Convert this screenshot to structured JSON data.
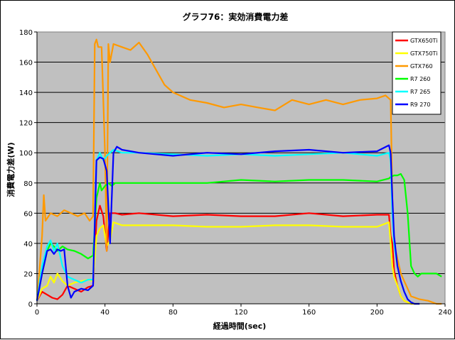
{
  "chart_data": {
    "type": "line",
    "title": "グラフ76：実効消費電力差",
    "xlabel": "経過時間(sec)",
    "ylabel": "消費電力差(W)",
    "xlim": [
      0,
      240
    ],
    "ylim": [
      0,
      180
    ],
    "x_ticks": [
      0,
      40,
      80,
      120,
      160,
      200,
      240
    ],
    "y_ticks": [
      0,
      20,
      40,
      60,
      80,
      100,
      120,
      140,
      160,
      180
    ],
    "grid": true,
    "plot_background": "#c0c0c0",
    "legend_position": "top-right",
    "series": [
      {
        "name": "GTX650Ti",
        "color": "#ff0000",
        "x": [
          0,
          3,
          6,
          9,
          12,
          15,
          18,
          22,
          26,
          30,
          33,
          35,
          37,
          39,
          41,
          43,
          46,
          50,
          60,
          80,
          100,
          120,
          140,
          160,
          180,
          200,
          207,
          208,
          209,
          210,
          212,
          214,
          216,
          218,
          220,
          222,
          225
        ],
        "y": [
          2,
          8,
          6,
          4,
          3,
          6,
          12,
          10,
          8,
          11,
          12,
          55,
          65,
          58,
          35,
          60,
          60,
          59,
          60,
          58,
          59,
          58,
          58,
          60,
          58,
          59,
          59,
          45,
          40,
          22,
          12,
          5,
          2,
          1,
          0,
          0,
          0
        ]
      },
      {
        "name": "GTX750Ti",
        "color": "#ffff00",
        "x": [
          0,
          3,
          6,
          8,
          10,
          12,
          15,
          18,
          22,
          26,
          30,
          33,
          35,
          37,
          39,
          41,
          43,
          45,
          50,
          60,
          80,
          100,
          120,
          140,
          160,
          180,
          200,
          207,
          208,
          209,
          210,
          212,
          214,
          216,
          218,
          220,
          222,
          225
        ],
        "y": [
          2,
          10,
          12,
          18,
          14,
          20,
          15,
          12,
          14,
          15,
          16,
          15,
          45,
          50,
          52,
          38,
          42,
          54,
          52,
          52,
          52,
          51,
          51,
          52,
          52,
          51,
          51,
          54,
          40,
          25,
          18,
          12,
          5,
          2,
          1,
          0,
          0,
          0
        ]
      },
      {
        "name": "GTX760",
        "color": "#ff9900",
        "x": [
          0,
          1,
          3,
          4,
          5,
          8,
          12,
          16,
          20,
          24,
          28,
          31,
          33,
          34,
          35,
          36,
          38,
          40,
          41,
          42,
          43,
          45,
          50,
          55,
          60,
          65,
          70,
          75,
          80,
          90,
          100,
          110,
          120,
          130,
          140,
          150,
          160,
          170,
          180,
          190,
          200,
          205,
          208,
          209,
          210,
          212,
          214,
          216,
          218,
          220,
          225,
          230,
          235,
          238
        ],
        "y": [
          2,
          15,
          45,
          72,
          55,
          60,
          58,
          62,
          60,
          58,
          60,
          55,
          58,
          172,
          175,
          170,
          170,
          100,
          35,
          172,
          160,
          172,
          170,
          168,
          173,
          165,
          155,
          145,
          140,
          135,
          133,
          130,
          132,
          130,
          128,
          135,
          132,
          135,
          132,
          135,
          136,
          138,
          135,
          70,
          40,
          30,
          20,
          15,
          10,
          5,
          3,
          2,
          0,
          0
        ]
      },
      {
        "name": "R7 260",
        "color": "#00ff00",
        "x": [
          0,
          3,
          6,
          8,
          10,
          12,
          15,
          18,
          22,
          26,
          30,
          33,
          35,
          37,
          38,
          40,
          42,
          44,
          46,
          50,
          60,
          80,
          100,
          120,
          140,
          160,
          180,
          200,
          207,
          208,
          210,
          212,
          214,
          216,
          218,
          220,
          222,
          224,
          226,
          230,
          235,
          238
        ],
        "y": [
          2,
          20,
          35,
          40,
          38,
          35,
          38,
          36,
          35,
          33,
          30,
          32,
          70,
          80,
          75,
          78,
          80,
          78,
          80,
          80,
          80,
          80,
          80,
          82,
          81,
          82,
          82,
          81,
          83,
          84,
          85,
          85,
          86,
          82,
          60,
          25,
          20,
          18,
          20,
          20,
          20,
          18
        ]
      },
      {
        "name": "R7 265",
        "color": "#00ffff",
        "x": [
          0,
          3,
          6,
          8,
          10,
          12,
          15,
          18,
          22,
          26,
          30,
          33,
          35,
          37,
          39,
          41,
          43,
          45,
          50,
          60,
          80,
          100,
          120,
          140,
          160,
          180,
          200,
          207,
          208,
          209,
          210,
          212,
          214,
          216,
          218,
          220,
          222,
          225
        ],
        "y": [
          2,
          25,
          38,
          42,
          35,
          40,
          25,
          18,
          16,
          14,
          16,
          16,
          95,
          100,
          95,
          98,
          100,
          102,
          100,
          100,
          99,
          98,
          99,
          98,
          99,
          100,
          98,
          100,
          95,
          60,
          40,
          25,
          15,
          8,
          3,
          1,
          0,
          0
        ]
      },
      {
        "name": "R9 270",
        "color": "#0000ff",
        "x": [
          0,
          3,
          6,
          8,
          10,
          12,
          14,
          16,
          18,
          20,
          22,
          26,
          30,
          33,
          35,
          37,
          39,
          41,
          43,
          45,
          47,
          50,
          60,
          80,
          100,
          120,
          140,
          160,
          180,
          200,
          207,
          208,
          209,
          210,
          212,
          214,
          216,
          218,
          220,
          222,
          225
        ],
        "y": [
          2,
          20,
          35,
          36,
          33,
          36,
          35,
          36,
          12,
          4,
          8,
          10,
          9,
          12,
          95,
          97,
          96,
          88,
          40,
          100,
          104,
          102,
          100,
          98,
          100,
          99,
          101,
          102,
          100,
          101,
          105,
          100,
          70,
          45,
          25,
          15,
          8,
          3,
          1,
          0,
          0
        ]
      }
    ]
  }
}
